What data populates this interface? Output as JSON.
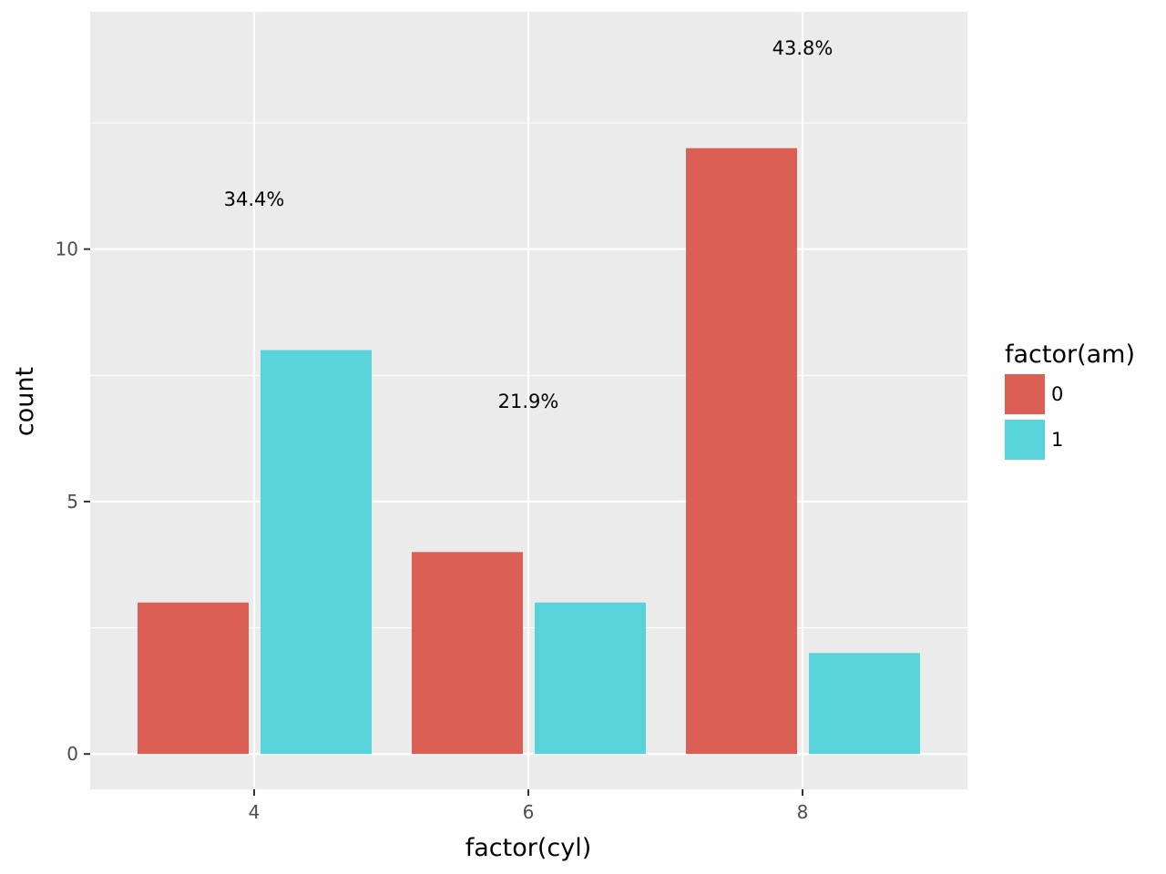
{
  "chart_data": {
    "type": "bar",
    "categories": [
      "4",
      "6",
      "8"
    ],
    "series": [
      {
        "name": "0",
        "values": [
          3,
          4,
          12
        ],
        "color": "#DC5F56"
      },
      {
        "name": "1",
        "values": [
          8,
          3,
          2
        ],
        "color": "#58D3DA"
      }
    ],
    "annotations": [
      {
        "category": "4",
        "y": 11,
        "text": "34.4%"
      },
      {
        "category": "6",
        "y": 7,
        "text": "21.9%"
      },
      {
        "category": "8",
        "y": 14,
        "text": "43.8%"
      }
    ],
    "xlabel": "factor(cyl)",
    "ylabel": "count",
    "y_ticks": [
      0,
      5,
      10
    ],
    "ylim": [
      -0.7,
      14.7
    ],
    "grid": true,
    "legend": {
      "title": "factor(am)",
      "position": "right"
    },
    "colors": {
      "panel": "#EBEBEB",
      "grid": "#FFFFFF",
      "tick_text": "#4D4D4D",
      "tick_mark": "#333333"
    }
  }
}
